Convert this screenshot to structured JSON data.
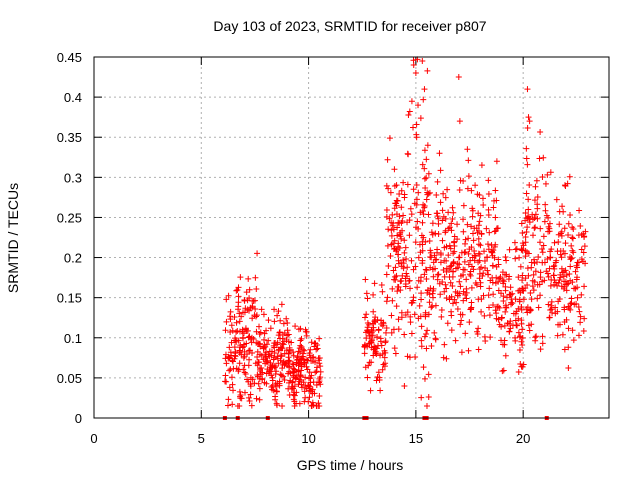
{
  "chart_data": {
    "type": "scatter",
    "title": "Day 103 of 2023, SRMTID for receiver p807",
    "xlabel": "GPS time / hours",
    "ylabel": "SRMTID / TECUs",
    "xlim": [
      0,
      24
    ],
    "ylim": [
      0,
      0.45
    ],
    "xticks": [
      0,
      5,
      10,
      15,
      20
    ],
    "yticks": [
      0,
      0.05,
      0.1,
      0.15,
      0.2,
      0.25,
      0.3,
      0.35,
      0.4,
      0.45
    ],
    "xtick_labels": [
      "0",
      "5",
      "10",
      "15",
      "20"
    ],
    "ytick_labels": [
      "0",
      "0.05",
      "0.1",
      "0.15",
      "0.2",
      "0.25",
      "0.3",
      "0.35",
      "0.4",
      "0.45"
    ],
    "grid": true,
    "series": [
      {
        "name": "SRMTID",
        "marker": "plus",
        "color": "#ff0000",
        "clusters": [
          {
            "x": [
              6.1,
              6.6
            ],
            "y_mean": 0.08,
            "y_spread": 0.03,
            "n": 45
          },
          {
            "x": [
              6.6,
              7.6
            ],
            "y_mean": 0.1,
            "y_spread": 0.04,
            "n": 110
          },
          {
            "x": [
              7.6,
              9.2
            ],
            "y_mean": 0.075,
            "y_spread": 0.025,
            "n": 170
          },
          {
            "x": [
              9.2,
              10.6
            ],
            "y_mean": 0.06,
            "y_spread": 0.025,
            "n": 150
          },
          {
            "x": [
              12.6,
              13.6
            ],
            "y_mean": 0.1,
            "y_spread": 0.03,
            "n": 90
          },
          {
            "x": [
              13.6,
              14.6
            ],
            "y_mean": 0.19,
            "y_spread": 0.06,
            "n": 110
          },
          {
            "x": [
              14.6,
              15.6
            ],
            "y_mean": 0.23,
            "y_spread": 0.09,
            "n": 110
          },
          {
            "x": [
              15.6,
              17.2
            ],
            "y_mean": 0.19,
            "y_spread": 0.05,
            "n": 150
          },
          {
            "x": [
              17.2,
              18.8
            ],
            "y_mean": 0.2,
            "y_spread": 0.05,
            "n": 150
          },
          {
            "x": [
              18.8,
              20.0
            ],
            "y_mean": 0.15,
            "y_spread": 0.04,
            "n": 110
          },
          {
            "x": [
              20.0,
              21.2
            ],
            "y_mean": 0.22,
            "y_spread": 0.06,
            "n": 110
          },
          {
            "x": [
              21.2,
              22.9
            ],
            "y_mean": 0.18,
            "y_spread": 0.05,
            "n": 150
          }
        ],
        "peaks": [
          {
            "x": 14.9,
            "y": 0.44
          },
          {
            "x": 15.0,
            "y": 0.43
          },
          {
            "x": 15.3,
            "y": 0.445
          },
          {
            "x": 15.4,
            "y": 0.41
          },
          {
            "x": 15.1,
            "y": 0.39
          },
          {
            "x": 17.0,
            "y": 0.425
          },
          {
            "x": 17.05,
            "y": 0.37
          },
          {
            "x": 20.2,
            "y": 0.41
          },
          {
            "x": 20.25,
            "y": 0.375
          },
          {
            "x": 20.3,
            "y": 0.37
          },
          {
            "x": 14.0,
            "y": 0.31
          },
          {
            "x": 16.1,
            "y": 0.33
          },
          {
            "x": 17.4,
            "y": 0.335
          }
        ]
      }
    ],
    "baseline_markers_x": [
      6.1,
      6.7,
      8.1,
      12.6,
      12.7,
      15.4,
      15.5,
      21.1
    ]
  }
}
